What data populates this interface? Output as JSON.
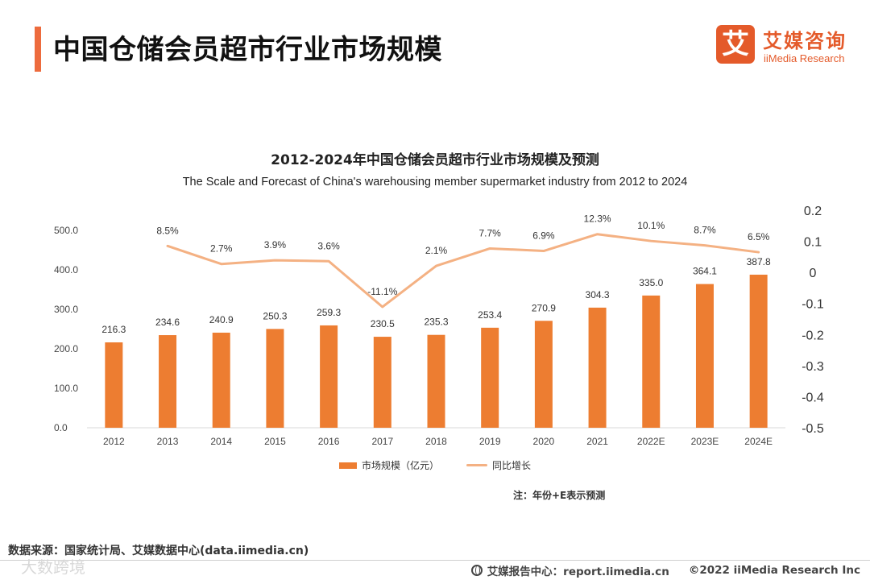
{
  "header": {
    "title": "中国仓储会员超市行业市场规模",
    "logo_mark": "艾",
    "logo_cn": "艾媒咨询",
    "logo_en": "iiMedia Research"
  },
  "chart_data": {
    "type": "bar",
    "title": "2012-2024年中国仓储会员超市行业市场规模及预测",
    "subtitle": "The Scale and Forecast of China's warehousing member supermarket industry from 2012 to 2024",
    "categories": [
      "2012",
      "2013",
      "2014",
      "2015",
      "2016",
      "2017",
      "2018",
      "2019",
      "2020",
      "2021",
      "2022E",
      "2023E",
      "2024E"
    ],
    "series": [
      {
        "name": "市场规模（亿元）",
        "type": "bar",
        "axis": "left",
        "color": "#ed7d31",
        "values": [
          216.3,
          234.6,
          240.9,
          250.3,
          259.3,
          230.5,
          235.3,
          253.4,
          270.9,
          304.3,
          335.0,
          364.1,
          387.8
        ],
        "labels": [
          "216.3",
          "234.6",
          "240.9",
          "250.3",
          "259.3",
          "230.5",
          "235.3",
          "253.4",
          "270.9",
          "304.3",
          "335.0",
          "364.1",
          "387.8"
        ]
      },
      {
        "name": "同比增长",
        "type": "line",
        "axis": "right",
        "color": "#f4b183",
        "values": [
          null,
          0.085,
          0.027,
          0.039,
          0.036,
          -0.111,
          0.021,
          0.077,
          0.069,
          0.123,
          0.101,
          0.087,
          0.065
        ],
        "labels": [
          "",
          "8.5%",
          "2.7%",
          "3.9%",
          "3.6%",
          "-11.1%",
          "2.1%",
          "7.7%",
          "6.9%",
          "12.3%",
          "10.1%",
          "8.7%",
          "6.5%"
        ]
      }
    ],
    "y_left": {
      "range": [
        0,
        500
      ],
      "ticks": [
        "0.0",
        "100.0",
        "200.0",
        "300.0",
        "400.0",
        "500.0"
      ]
    },
    "y_right": {
      "range": [
        -0.5,
        0.2
      ],
      "ticks": [
        "-0.5",
        "-0.4",
        "-0.3",
        "-0.2",
        "-0.1",
        "0",
        "0.1",
        "0.2"
      ]
    },
    "grid": false,
    "legend": "bottom"
  },
  "note": "注：年份+E表示预测",
  "source": "数据来源：国家统计局、艾媒数据中心(data.iimedia.cn)",
  "footer": {
    "watermark": "大数跨境",
    "report_center": "艾媒报告中心：report.iimedia.cn",
    "copyright": "©2022  iiMedia Research  Inc"
  }
}
